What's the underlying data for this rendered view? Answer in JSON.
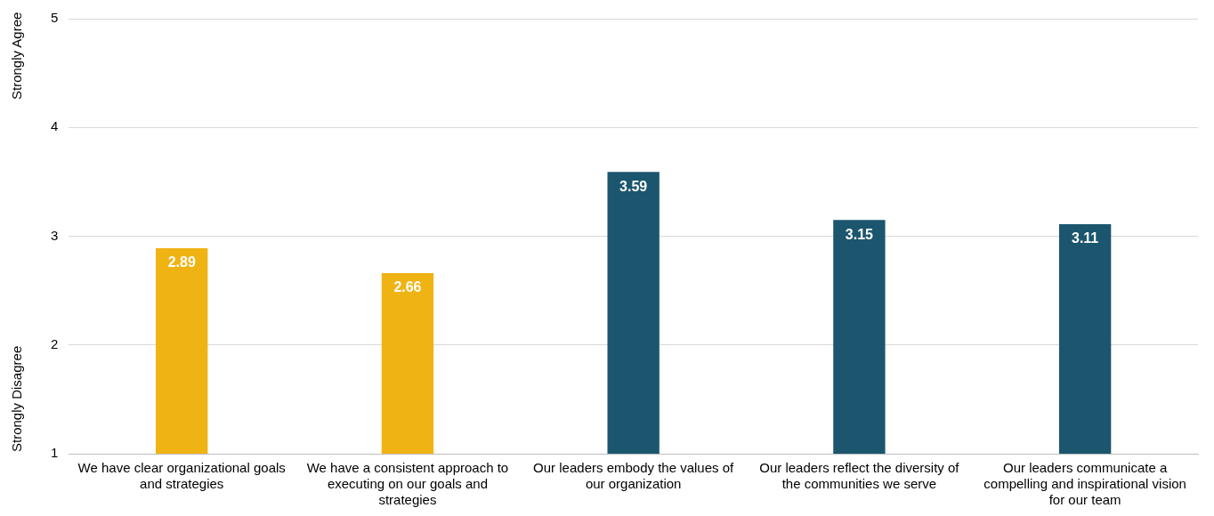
{
  "chart_data": {
    "type": "bar",
    "categories": [
      "We have clear organizational goals and strategies",
      "We have a consistent approach to executing on our goals and strategies",
      "Our leaders embody the values of our organization",
      "Our leaders reflect the diversity of the communities we serve",
      "Our leaders communicate a compelling and inspirational vision for our team"
    ],
    "values": [
      2.89,
      2.66,
      3.59,
      3.15,
      3.11
    ],
    "colors": [
      "#f0b314",
      "#f0b314",
      "#1b566e",
      "#1b566e",
      "#1b566e"
    ],
    "ylim": [
      1,
      5
    ],
    "yticks": [
      1,
      2,
      3,
      4,
      5
    ],
    "grid": "y",
    "data_labels": true,
    "legend": false,
    "annotations": [
      "Strongly Agree",
      "Strongly Disagree"
    ]
  }
}
